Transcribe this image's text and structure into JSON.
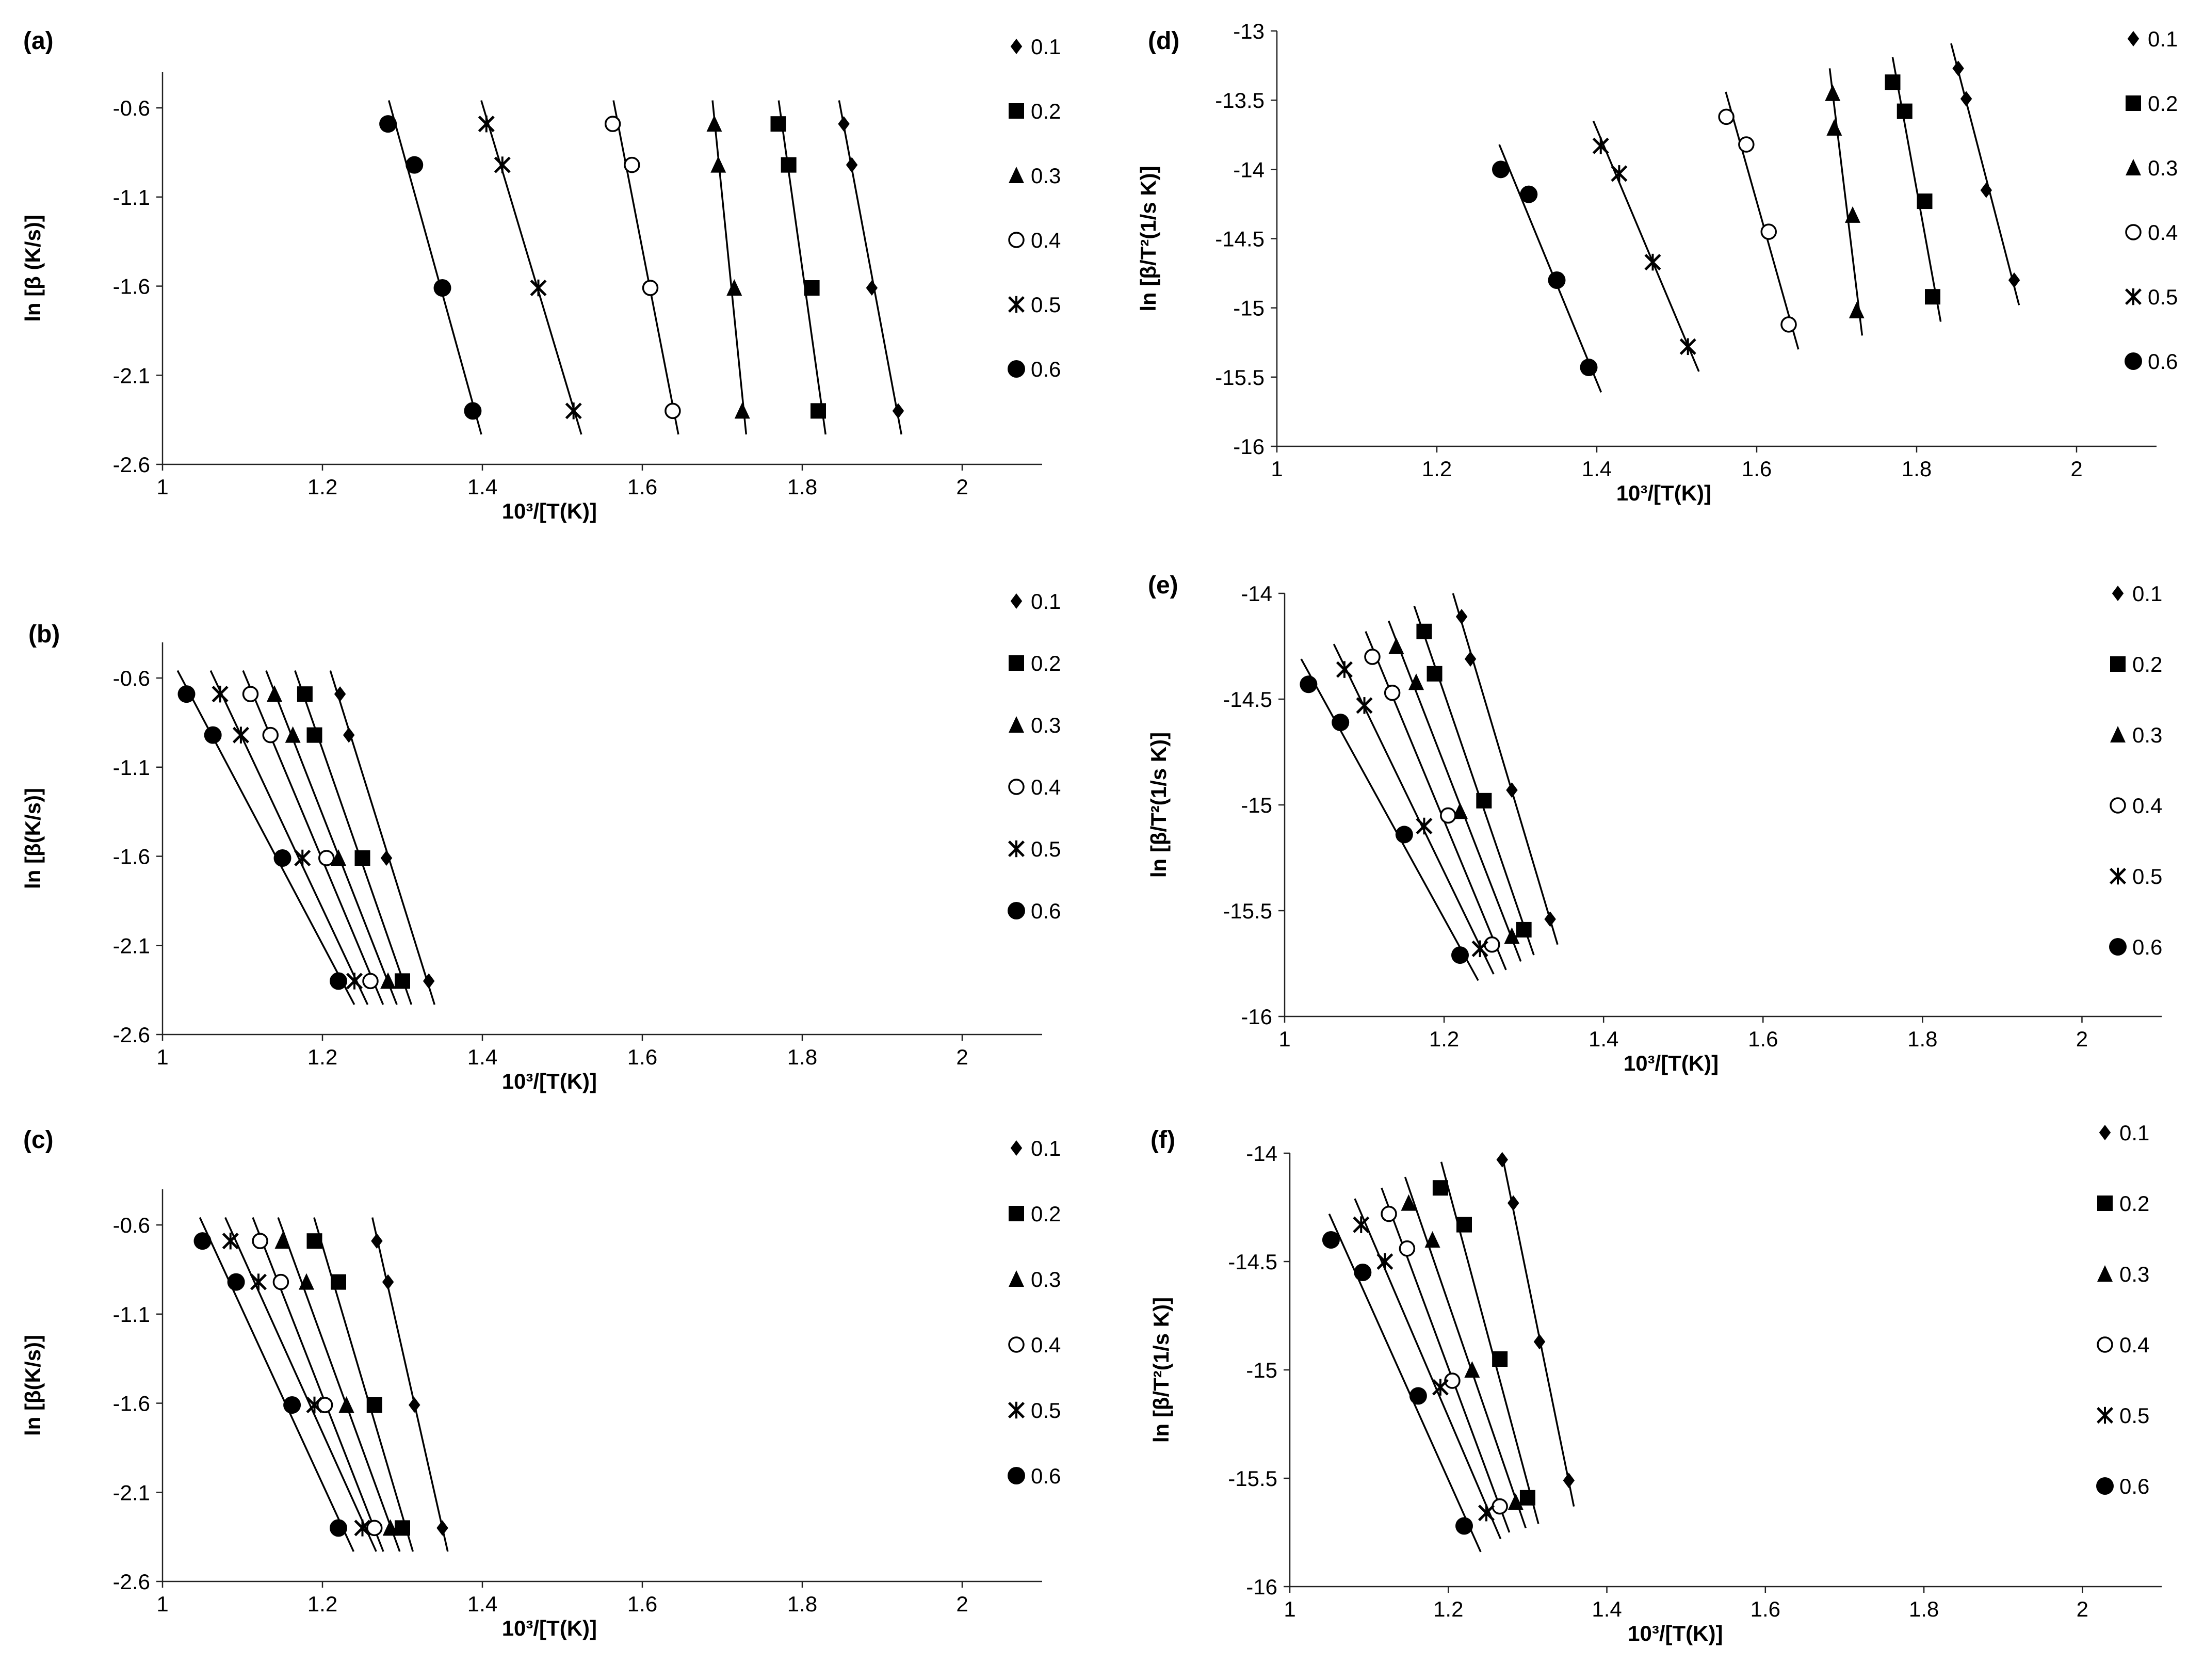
{
  "chart_data": [
    {
      "panel": "(a)",
      "type": "scatter",
      "xlabel": "10³/[T(K)]",
      "ylabel": "ln [β (K/s)]",
      "xlim": [
        1,
        2.1
      ],
      "ylim": [
        -2.6,
        -0.4
      ],
      "xticks": [
        "1",
        "1.2",
        "1.4",
        "1.6",
        "1.8",
        "2"
      ],
      "yticks": [
        "-0.6",
        "-1.1",
        "-1.6",
        "-2.1",
        "-2.6"
      ],
      "y": [
        -0.69,
        -0.92,
        -1.61,
        -2.3
      ],
      "series": [
        {
          "name": "0.1",
          "marker": "diamond",
          "x": [
            1.852,
            1.862,
            1.887,
            1.92
          ]
        },
        {
          "name": "0.2",
          "marker": "square",
          "x": [
            1.77,
            1.783,
            1.812,
            1.82
          ]
        },
        {
          "name": "0.3",
          "marker": "triangle",
          "x": [
            1.69,
            1.695,
            1.715,
            1.725
          ]
        },
        {
          "name": "0.4",
          "marker": "circle-open",
          "x": [
            1.563,
            1.587,
            1.61,
            1.638
          ]
        },
        {
          "name": "0.5",
          "marker": "asterisk",
          "x": [
            1.405,
            1.425,
            1.47,
            1.514
          ]
        },
        {
          "name": "0.6",
          "marker": "circle",
          "x": [
            1.282,
            1.315,
            1.35,
            1.388
          ]
        }
      ]
    },
    {
      "panel": "(b)",
      "type": "scatter",
      "xlabel": "10³/[T(K)]",
      "ylabel": "ln [β(K/s)]",
      "xlim": [
        1,
        2.1
      ],
      "ylim": [
        -2.6,
        -0.4
      ],
      "xticks": [
        "1",
        "1.2",
        "1.4",
        "1.6",
        "1.8",
        "2"
      ],
      "yticks": [
        "-0.6",
        "-1.1",
        "-1.6",
        "-2.1",
        "-2.6"
      ],
      "y": [
        -0.69,
        -0.92,
        -1.61,
        -2.3
      ],
      "series": [
        {
          "name": "0.1",
          "marker": "diamond",
          "x": [
            1.222,
            1.233,
            1.28,
            1.333
          ]
        },
        {
          "name": "0.2",
          "marker": "square",
          "x": [
            1.178,
            1.19,
            1.25,
            1.3
          ]
        },
        {
          "name": "0.3",
          "marker": "triangle",
          "x": [
            1.14,
            1.163,
            1.22,
            1.282
          ]
        },
        {
          "name": "0.4",
          "marker": "circle-open",
          "x": [
            1.11,
            1.135,
            1.205,
            1.26
          ]
        },
        {
          "name": "0.5",
          "marker": "asterisk",
          "x": [
            1.072,
            1.098,
            1.175,
            1.24
          ]
        },
        {
          "name": "0.6",
          "marker": "circle",
          "x": [
            1.03,
            1.063,
            1.15,
            1.22
          ]
        }
      ]
    },
    {
      "panel": "(c)",
      "type": "scatter",
      "xlabel": "10³/[T(K)]",
      "ylabel": "ln [β(K/s)]",
      "xlim": [
        1,
        2.1
      ],
      "ylim": [
        -2.6,
        -0.4
      ],
      "xticks": [
        "1",
        "1.2",
        "1.4",
        "1.6",
        "1.8",
        "2"
      ],
      "yticks": [
        "-0.6",
        "-1.1",
        "-1.6",
        "-2.1",
        "-2.6"
      ],
      "y": [
        -0.69,
        -0.92,
        -1.61,
        -2.3
      ],
      "series": [
        {
          "name": "0.1",
          "marker": "diamond",
          "x": [
            1.268,
            1.282,
            1.315,
            1.35
          ]
        },
        {
          "name": "0.2",
          "marker": "square",
          "x": [
            1.19,
            1.22,
            1.265,
            1.3
          ]
        },
        {
          "name": "0.3",
          "marker": "triangle",
          "x": [
            1.15,
            1.18,
            1.23,
            1.285
          ]
        },
        {
          "name": "0.4",
          "marker": "circle-open",
          "x": [
            1.122,
            1.148,
            1.203,
            1.265
          ]
        },
        {
          "name": "0.5",
          "marker": "asterisk",
          "x": [
            1.085,
            1.12,
            1.19,
            1.25
          ]
        },
        {
          "name": "0.6",
          "marker": "circle",
          "x": [
            1.05,
            1.092,
            1.162,
            1.22
          ]
        }
      ]
    },
    {
      "panel": "(d)",
      "type": "scatter",
      "xlabel": "10³/[T(K)]",
      "ylabel": "ln [β/T²(1/s K)]",
      "xlim": [
        1,
        2.1
      ],
      "ylim": [
        -16,
        -13
      ],
      "xticks": [
        "1",
        "1.2",
        "1.4",
        "1.6",
        "1.8",
        "2"
      ],
      "yticks": [
        "-13",
        "-13.5",
        "-14",
        "-14.5",
        "-15",
        "-15.5",
        "-16"
      ],
      "series": [
        {
          "name": "0.1",
          "marker": "diamond",
          "x": [
            1.852,
            1.862,
            1.887,
            1.922
          ],
          "y": [
            -13.27,
            -13.49,
            -14.15,
            -14.8
          ]
        },
        {
          "name": "0.2",
          "marker": "square",
          "x": [
            1.77,
            1.785,
            1.81,
            1.82
          ],
          "y": [
            -13.37,
            -13.58,
            -14.23,
            -14.92
          ]
        },
        {
          "name": "0.3",
          "marker": "triangle",
          "x": [
            1.695,
            1.697,
            1.72,
            1.725
          ],
          "y": [
            -13.45,
            -13.7,
            -14.33,
            -15.02
          ]
        },
        {
          "name": "0.4",
          "marker": "circle-open",
          "x": [
            1.562,
            1.587,
            1.615,
            1.64
          ],
          "y": [
            -13.62,
            -13.82,
            -14.45,
            -15.12
          ]
        },
        {
          "name": "0.5",
          "marker": "asterisk",
          "x": [
            1.405,
            1.428,
            1.47,
            1.514
          ],
          "y": [
            -13.83,
            -14.03,
            -14.67,
            -15.28
          ]
        },
        {
          "name": "0.6",
          "marker": "circle",
          "x": [
            1.28,
            1.315,
            1.35,
            1.39
          ],
          "y": [
            -14.0,
            -14.18,
            -14.8,
            -15.43
          ]
        }
      ]
    },
    {
      "panel": "(e)",
      "type": "scatter",
      "xlabel": "10³/[T(K)]",
      "ylabel": "ln [β/T²(1/s K)]",
      "xlim": [
        1,
        2.1
      ],
      "ylim": [
        -16,
        -14
      ],
      "xticks": [
        "1",
        "1.2",
        "1.4",
        "1.6",
        "1.8",
        "2"
      ],
      "yticks": [
        "-14",
        "-14.5",
        "-15",
        "-15.5",
        "-16"
      ],
      "series": [
        {
          "name": "0.1",
          "marker": "diamond",
          "x": [
            1.222,
            1.233,
            1.285,
            1.333
          ],
          "y": [
            -14.11,
            -14.31,
            -14.93,
            -15.54
          ]
        },
        {
          "name": "0.2",
          "marker": "square",
          "x": [
            1.175,
            1.188,
            1.25,
            1.3
          ],
          "y": [
            -14.18,
            -14.38,
            -14.98,
            -15.59
          ]
        },
        {
          "name": "0.3",
          "marker": "triangle",
          "x": [
            1.14,
            1.165,
            1.22,
            1.285
          ],
          "y": [
            -14.25,
            -14.42,
            -15.03,
            -15.62
          ]
        },
        {
          "name": "0.4",
          "marker": "circle-open",
          "x": [
            1.11,
            1.135,
            1.205,
            1.26
          ],
          "y": [
            -14.3,
            -14.47,
            -15.05,
            -15.66
          ]
        },
        {
          "name": "0.5",
          "marker": "asterisk",
          "x": [
            1.075,
            1.1,
            1.175,
            1.245
          ],
          "y": [
            -14.36,
            -14.53,
            -15.1,
            -15.68
          ]
        },
        {
          "name": "0.6",
          "marker": "circle",
          "x": [
            1.03,
            1.07,
            1.15,
            1.22
          ],
          "y": [
            -14.43,
            -14.61,
            -15.14,
            -15.71
          ]
        }
      ]
    },
    {
      "panel": "(f)",
      "type": "scatter",
      "xlabel": "10³/[T(K)]",
      "ylabel": "ln [β/T²(1/s K)]",
      "xlim": [
        1,
        2.1
      ],
      "ylim": [
        -16,
        -14
      ],
      "xticks": [
        "1",
        "1.2",
        "1.4",
        "1.6",
        "1.8",
        "2"
      ],
      "yticks": [
        "-14",
        "-14.5",
        "-15",
        "-15.5",
        "-16"
      ],
      "series": [
        {
          "name": "0.1",
          "marker": "diamond",
          "x": [
            1.268,
            1.282,
            1.315,
            1.352
          ],
          "y": [
            -14.03,
            -14.23,
            -14.87,
            -15.51
          ]
        },
        {
          "name": "0.2",
          "marker": "square",
          "x": [
            1.19,
            1.22,
            1.265,
            1.3
          ],
          "y": [
            -14.16,
            -14.33,
            -14.95,
            -15.59
          ]
        },
        {
          "name": "0.3",
          "marker": "triangle",
          "x": [
            1.15,
            1.18,
            1.23,
            1.285
          ],
          "y": [
            -14.23,
            -14.4,
            -15.0,
            -15.61
          ]
        },
        {
          "name": "0.4",
          "marker": "circle-open",
          "x": [
            1.125,
            1.148,
            1.205,
            1.265
          ],
          "y": [
            -14.28,
            -14.44,
            -15.05,
            -15.63
          ]
        },
        {
          "name": "0.5",
          "marker": "asterisk",
          "x": [
            1.09,
            1.12,
            1.19,
            1.248
          ],
          "y": [
            -14.33,
            -14.5,
            -15.08,
            -15.66
          ]
        },
        {
          "name": "0.6",
          "marker": "circle",
          "x": [
            1.052,
            1.092,
            1.162,
            1.22
          ],
          "y": [
            -14.4,
            -14.55,
            -15.12,
            -15.72
          ]
        }
      ]
    }
  ]
}
